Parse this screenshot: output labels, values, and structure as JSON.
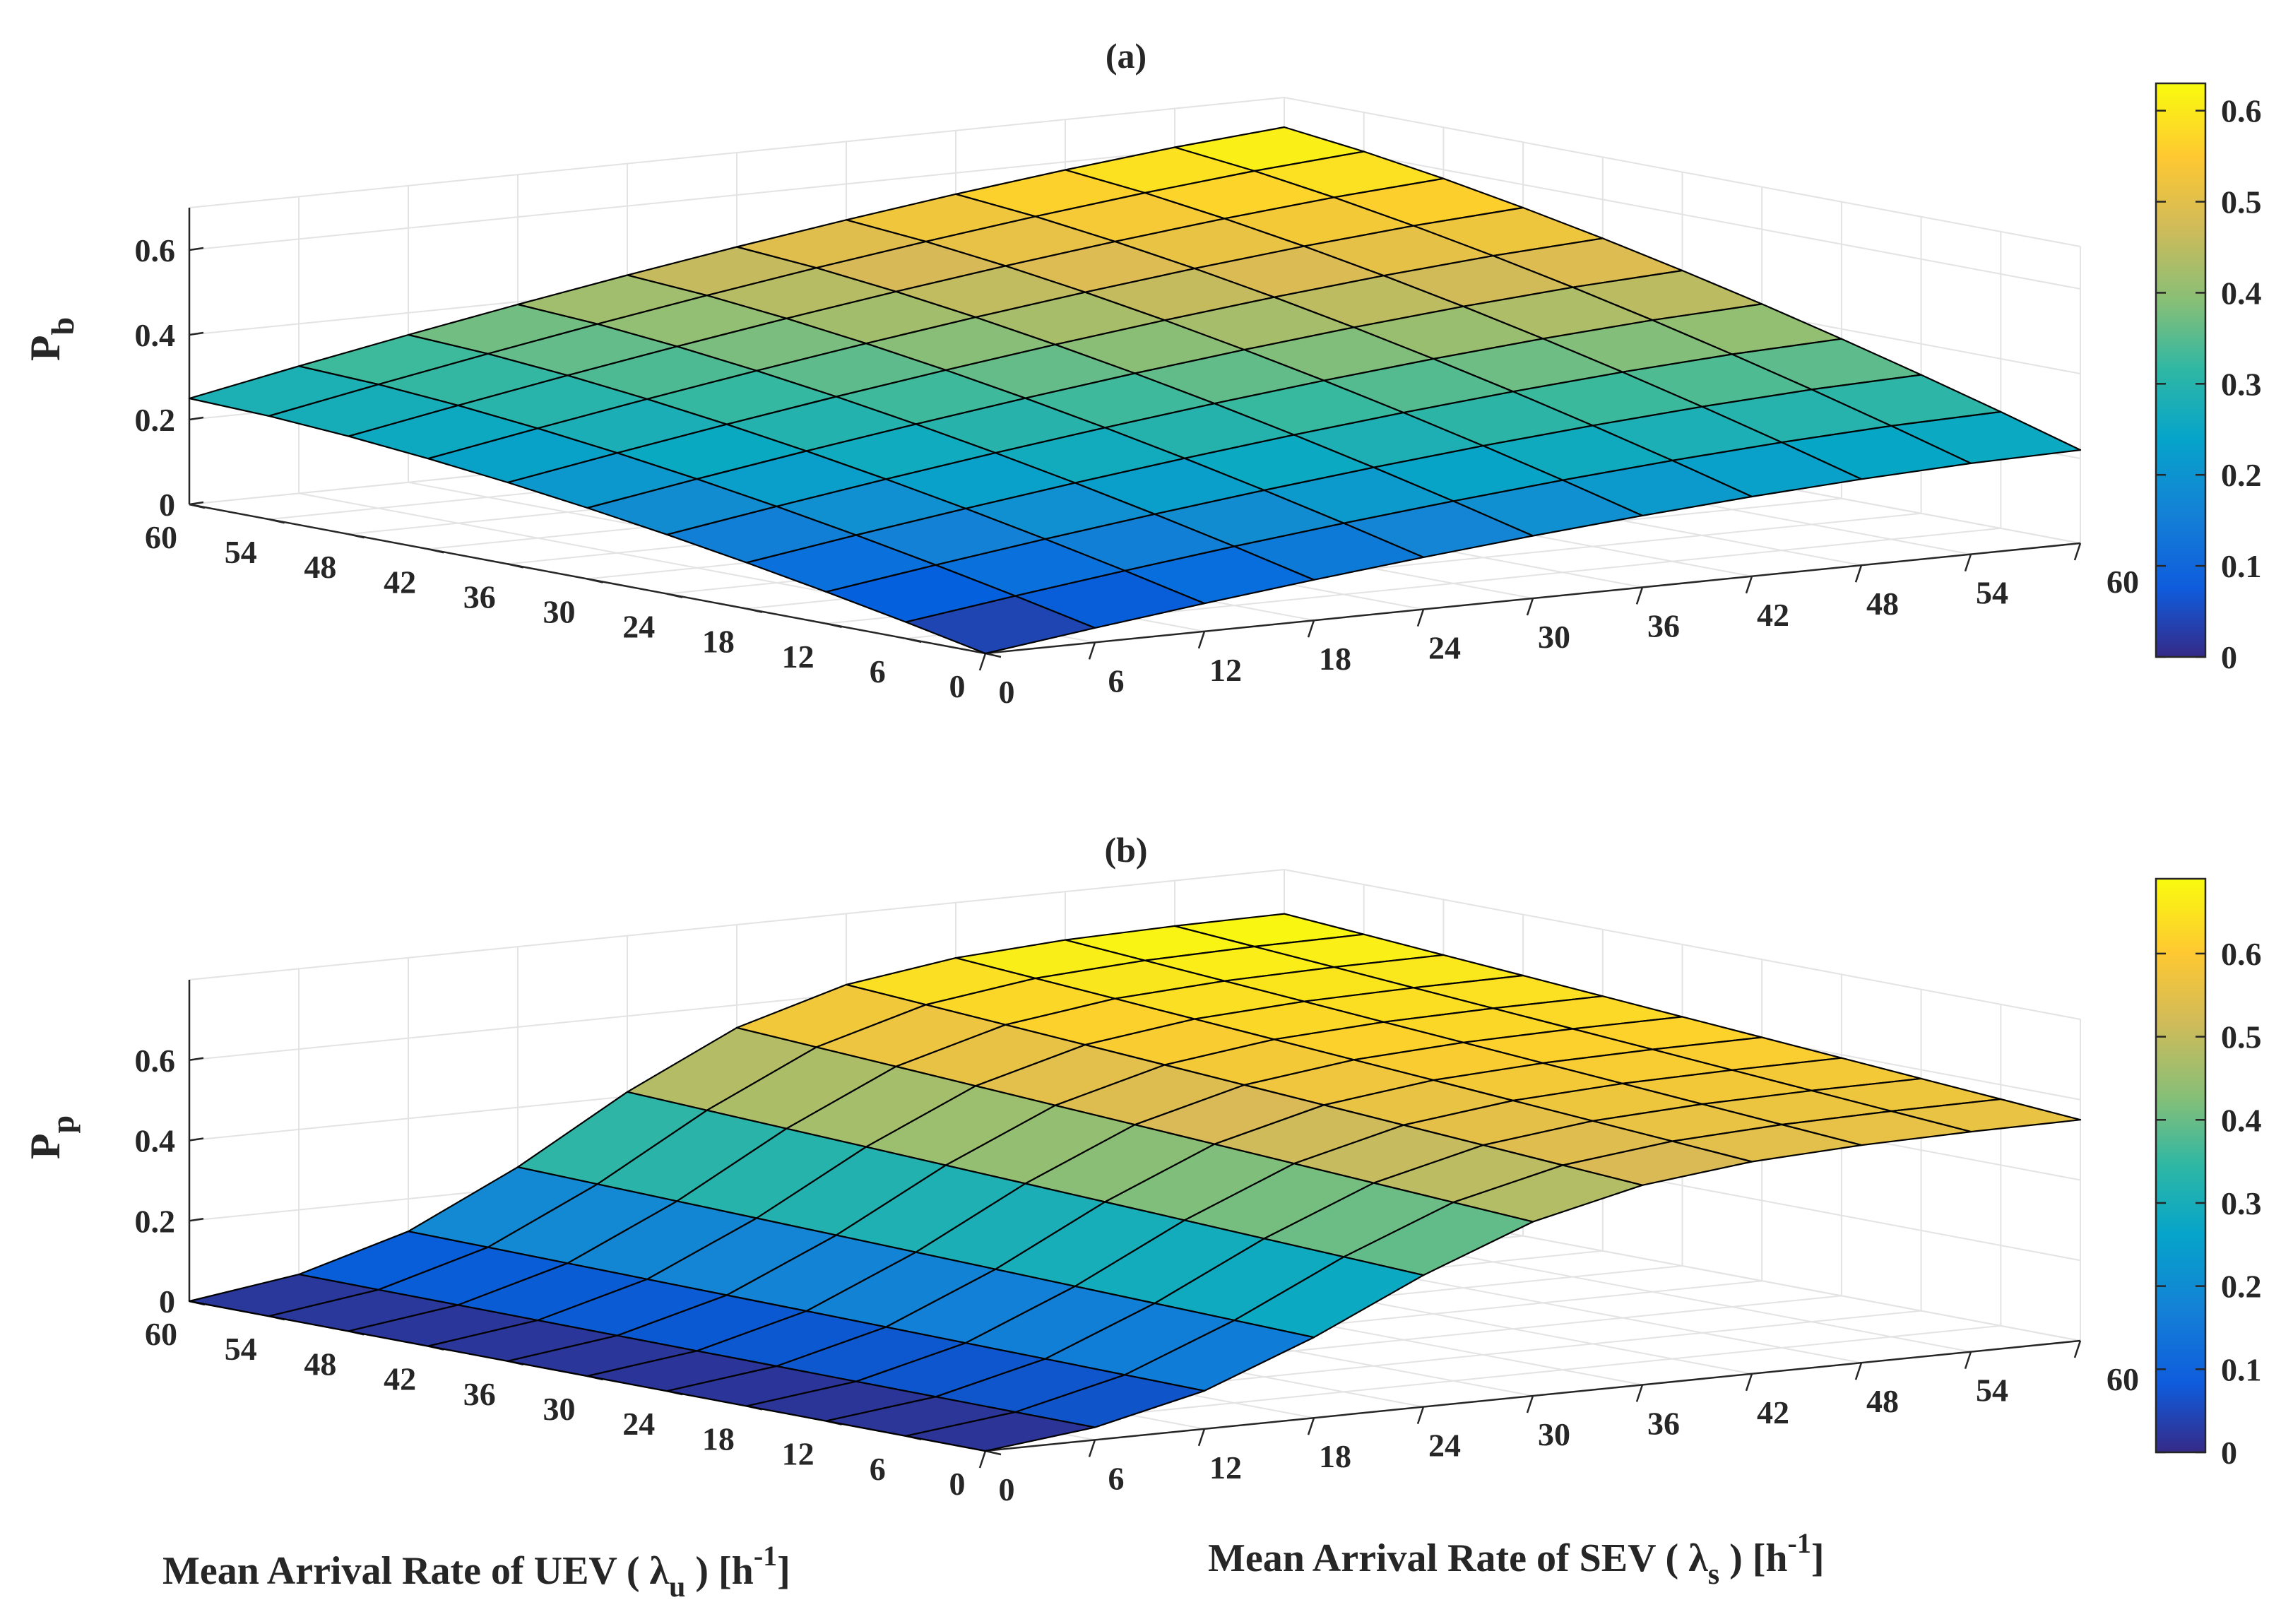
{
  "chart_data": [
    {
      "type": "surface",
      "title": "(a)",
      "zlabel": "P",
      "zlabel_sub": "b",
      "xlabel": "Mean Arrival Rate of UEV ( λ",
      "xlabel_sub": "u",
      "xlabel_tail": " ) [h",
      "xlabel_sup": "-1",
      "xlabel_end": "]",
      "ylabel": "Mean Arrival Rate of SEV ( λ",
      "ylabel_sub": "s",
      "ylabel_tail": " ) [h",
      "ylabel_sup": "-1",
      "ylabel_end": "]",
      "lambda_u_ticks": [
        "0",
        "6",
        "12",
        "18",
        "24",
        "30",
        "36",
        "42",
        "48",
        "54",
        "60"
      ],
      "lambda_s_ticks": [
        "0",
        "6",
        "12",
        "18",
        "24",
        "30",
        "36",
        "42",
        "48",
        "54",
        "60"
      ],
      "z_ticks": [
        "0",
        "0.2",
        "0.4",
        "0.6"
      ],
      "zlim": [
        0,
        0.7
      ],
      "grid": true,
      "colormap": "parula",
      "colorbar_ticks": [
        "0",
        "0.1",
        "0.2",
        "0.3",
        "0.4",
        "0.5",
        "0.6"
      ],
      "colorbar_range": [
        0,
        0.63
      ],
      "lambda_u": [
        0,
        6,
        12,
        18,
        24,
        30,
        36,
        42,
        48,
        54,
        60
      ],
      "lambda_s": [
        0,
        6,
        12,
        18,
        24,
        30,
        36,
        42,
        48,
        54,
        60
      ],
      "z_corners": {
        "u0_s0": 0.0,
        "u60_s0": 0.25,
        "u0_s60": 0.22,
        "u60_s60": 0.63
      }
    },
    {
      "type": "surface",
      "title": "(b)",
      "zlabel": "P",
      "zlabel_sub": "p",
      "lambda_u_ticks": [
        "0",
        "6",
        "12",
        "18",
        "24",
        "30",
        "36",
        "42",
        "48",
        "54",
        "60"
      ],
      "lambda_s_ticks": [
        "0",
        "6",
        "12",
        "18",
        "24",
        "30",
        "36",
        "42",
        "48",
        "54",
        "60"
      ],
      "z_ticks": [
        "0",
        "0.2",
        "0.4",
        "0.6"
      ],
      "zlim": [
        0,
        0.8
      ],
      "grid": true,
      "colormap": "parula",
      "colorbar_ticks": [
        "0",
        "0.1",
        "0.2",
        "0.3",
        "0.4",
        "0.5",
        "0.6"
      ],
      "colorbar_range": [
        0,
        0.69
      ],
      "lambda_u": [
        0,
        6,
        12,
        18,
        24,
        30,
        36,
        42,
        48,
        54,
        60
      ],
      "lambda_s": [
        0,
        6,
        12,
        18,
        24,
        30,
        36,
        42,
        48,
        54,
        60
      ],
      "z_corners": {
        "u0_s0": 0.0,
        "u60_s0": 0.0,
        "u0_s60": 0.55,
        "u60_s60": 0.69
      }
    }
  ],
  "colors": {
    "parula": [
      "#352a87",
      "#0363e1",
      "#1485d4",
      "#06a7c6",
      "#38b99e",
      "#92bf73",
      "#d9ba56",
      "#fcce2e",
      "#f9fb0e"
    ],
    "grid": "#e3e3e3",
    "axis": "#262626"
  }
}
